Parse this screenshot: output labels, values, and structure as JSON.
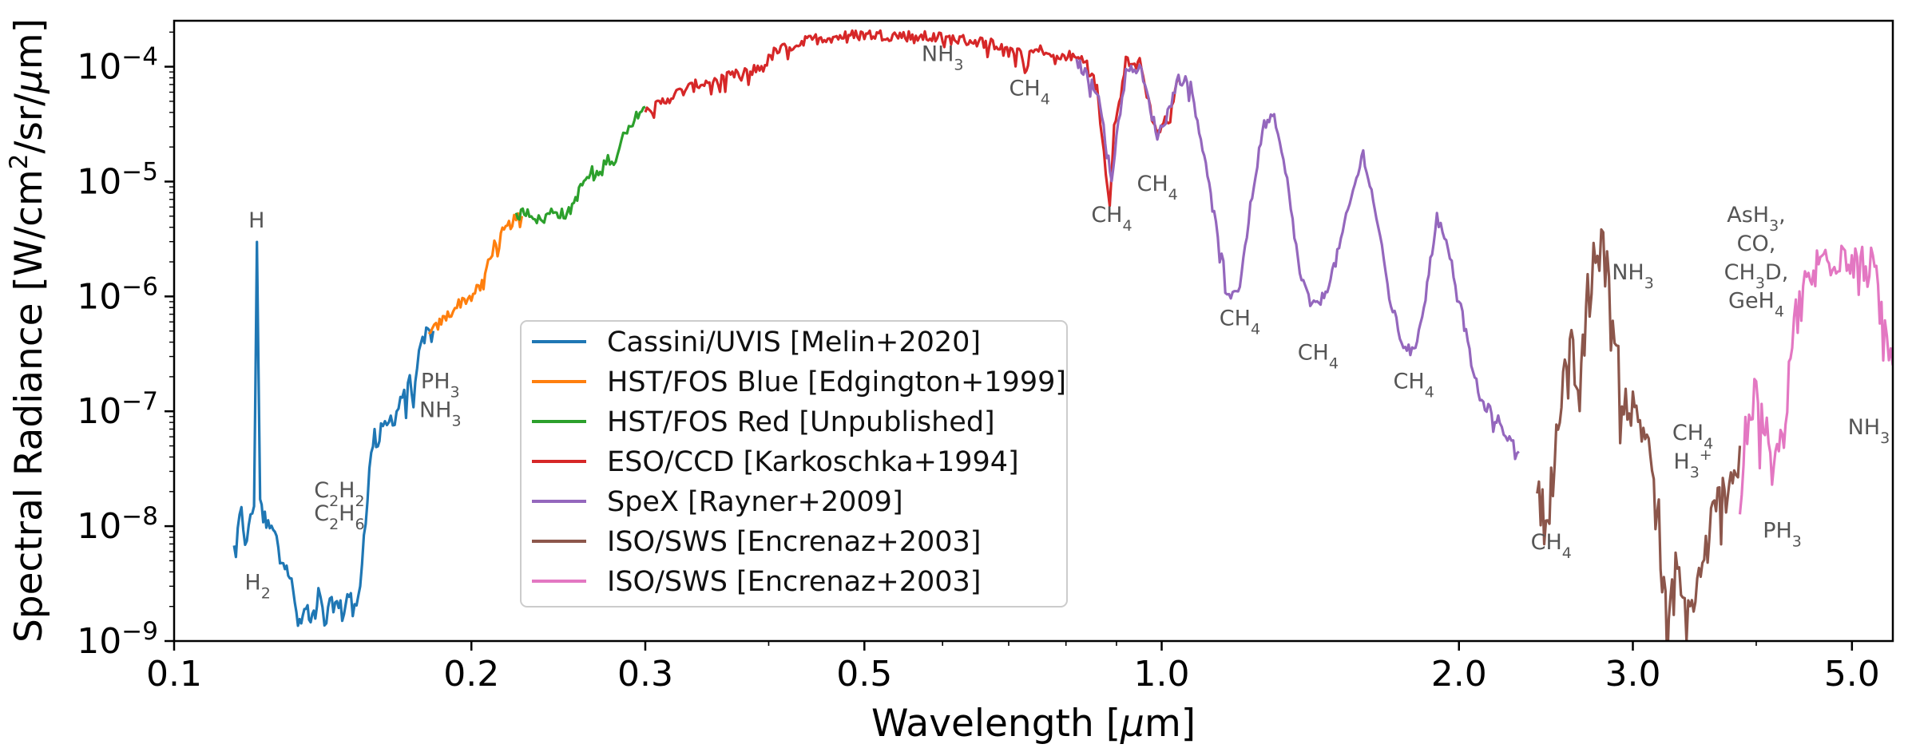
{
  "chart_data": {
    "type": "line",
    "xscale": "log",
    "yscale": "log",
    "xlabel_parts": [
      "Wavelength [",
      "μ",
      "m]"
    ],
    "ylabel_parts": [
      "Spectral Radiance [W/cm",
      "2",
      "/sr/",
      "μ",
      "m]"
    ],
    "xlim": [
      0.1,
      5.5
    ],
    "ylim_exponent": [
      -9,
      -3.6
    ],
    "xticks": [
      {
        "value": 0.1,
        "label": "0.1"
      },
      {
        "value": 0.2,
        "label": "0.2"
      },
      {
        "value": 0.3,
        "label": "0.3"
      },
      {
        "value": 0.5,
        "label": "0.5"
      },
      {
        "value": 1.0,
        "label": "1.0"
      },
      {
        "value": 2.0,
        "label": "2.0"
      },
      {
        "value": 3.0,
        "label": "3.0"
      },
      {
        "value": 5.0,
        "label": "5.0"
      }
    ],
    "yticks": [
      {
        "exponent": -9,
        "base": "10",
        "sup": "−9"
      },
      {
        "exponent": -8,
        "base": "10",
        "sup": "−8"
      },
      {
        "exponent": -7,
        "base": "10",
        "sup": "−7"
      },
      {
        "exponent": -6,
        "base": "10",
        "sup": "−6"
      },
      {
        "exponent": -5,
        "base": "10",
        "sup": "−5"
      },
      {
        "exponent": -4,
        "base": "10",
        "sup": "−4"
      }
    ],
    "series": [
      {
        "name": "Cassini/UVIS [Melin+2020]",
        "color": "#1f77b4",
        "points": [
          [
            0.115,
            -8.2
          ],
          [
            0.117,
            -7.9
          ],
          [
            0.118,
            -8.1
          ],
          [
            0.119,
            -8.05
          ],
          [
            0.1205,
            -7.8
          ],
          [
            0.1213,
            -5.6
          ],
          [
            0.1222,
            -7.7
          ],
          [
            0.124,
            -8.0
          ],
          [
            0.126,
            -8.05
          ],
          [
            0.128,
            -8.2
          ],
          [
            0.13,
            -8.3
          ],
          [
            0.132,
            -8.6
          ],
          [
            0.134,
            -8.9
          ],
          [
            0.136,
            -8.7
          ],
          [
            0.138,
            -8.8
          ],
          [
            0.14,
            -8.6
          ],
          [
            0.142,
            -8.85
          ],
          [
            0.145,
            -8.65
          ],
          [
            0.148,
            -8.75
          ],
          [
            0.151,
            -8.55
          ],
          [
            0.153,
            -8.75
          ],
          [
            0.155,
            -8.3
          ],
          [
            0.157,
            -7.7
          ],
          [
            0.159,
            -7.25
          ],
          [
            0.162,
            -7.2
          ],
          [
            0.165,
            -7.1
          ],
          [
            0.168,
            -7.0
          ],
          [
            0.171,
            -6.8
          ],
          [
            0.174,
            -6.75
          ],
          [
            0.177,
            -6.55
          ],
          [
            0.18,
            -6.35
          ],
          [
            0.183,
            -6.3
          ]
        ]
      },
      {
        "name": "HST/FOS Blue [Edgington+1999]",
        "color": "#ff7f0e",
        "points": [
          [
            0.181,
            -6.35
          ],
          [
            0.185,
            -6.25
          ],
          [
            0.19,
            -6.15
          ],
          [
            0.195,
            -6.05
          ],
          [
            0.2,
            -6.0
          ],
          [
            0.205,
            -5.9
          ],
          [
            0.208,
            -5.7
          ],
          [
            0.211,
            -5.55
          ],
          [
            0.215,
            -5.45
          ],
          [
            0.22,
            -5.35
          ],
          [
            0.225,
            -5.3
          ]
        ]
      },
      {
        "name": "HST/FOS Red [Unpublished]",
        "color": "#2ca02c",
        "points": [
          [
            0.222,
            -5.3
          ],
          [
            0.228,
            -5.25
          ],
          [
            0.235,
            -5.35
          ],
          [
            0.242,
            -5.25
          ],
          [
            0.25,
            -5.3
          ],
          [
            0.255,
            -5.15
          ],
          [
            0.26,
            -5.0
          ],
          [
            0.265,
            -4.9
          ],
          [
            0.27,
            -4.95
          ],
          [
            0.275,
            -4.75
          ],
          [
            0.28,
            -4.85
          ],
          [
            0.285,
            -4.6
          ],
          [
            0.29,
            -4.55
          ],
          [
            0.295,
            -4.4
          ],
          [
            0.3,
            -4.35
          ]
        ]
      },
      {
        "name": "ESO/CCD [Karkoschka+1994]",
        "color": "#d62728",
        "points": [
          [
            0.3,
            -4.4
          ],
          [
            0.32,
            -4.25
          ],
          [
            0.34,
            -4.15
          ],
          [
            0.36,
            -4.1
          ],
          [
            0.38,
            -4.05
          ],
          [
            0.395,
            -4.0
          ],
          [
            0.405,
            -3.88
          ],
          [
            0.42,
            -3.82
          ],
          [
            0.45,
            -3.75
          ],
          [
            0.5,
            -3.72
          ],
          [
            0.55,
            -3.73
          ],
          [
            0.6,
            -3.75
          ],
          [
            0.65,
            -3.78
          ],
          [
            0.7,
            -3.82
          ],
          [
            0.72,
            -3.87
          ],
          [
            0.727,
            -4.05
          ],
          [
            0.735,
            -3.88
          ],
          [
            0.76,
            -3.85
          ],
          [
            0.78,
            -3.95
          ],
          [
            0.8,
            -3.9
          ],
          [
            0.84,
            -3.95
          ],
          [
            0.86,
            -4.2
          ],
          [
            0.87,
            -4.6
          ],
          [
            0.886,
            -5.2
          ],
          [
            0.895,
            -4.5
          ],
          [
            0.92,
            -3.95
          ],
          [
            0.95,
            -3.95
          ],
          [
            0.97,
            -4.3
          ],
          [
            0.985,
            -4.55
          ],
          [
            1.0,
            -4.5
          ],
          [
            1.02,
            -4.45
          ],
          [
            1.04,
            -4.1
          ]
        ]
      },
      {
        "name": "SpeX [Rayner+2009]",
        "color": "#9467bd",
        "points": [
          [
            0.82,
            -3.95
          ],
          [
            0.86,
            -4.2
          ],
          [
            0.88,
            -4.7
          ],
          [
            0.89,
            -5.0
          ],
          [
            0.9,
            -4.6
          ],
          [
            0.92,
            -4.05
          ],
          [
            0.95,
            -4.0
          ],
          [
            0.97,
            -4.3
          ],
          [
            0.99,
            -4.6
          ],
          [
            1.01,
            -4.45
          ],
          [
            1.04,
            -4.1
          ],
          [
            1.07,
            -4.15
          ],
          [
            1.1,
            -4.7
          ],
          [
            1.13,
            -5.3
          ],
          [
            1.17,
            -6.0
          ],
          [
            1.2,
            -5.9
          ],
          [
            1.24,
            -5.0
          ],
          [
            1.27,
            -4.5
          ],
          [
            1.3,
            -4.45
          ],
          [
            1.34,
            -5.0
          ],
          [
            1.38,
            -5.8
          ],
          [
            1.42,
            -6.1
          ],
          [
            1.46,
            -6.0
          ],
          [
            1.5,
            -5.7
          ],
          [
            1.55,
            -5.2
          ],
          [
            1.6,
            -4.75
          ],
          [
            1.65,
            -5.3
          ],
          [
            1.7,
            -6.0
          ],
          [
            1.75,
            -6.4
          ],
          [
            1.8,
            -6.5
          ],
          [
            1.85,
            -6.0
          ],
          [
            1.9,
            -5.3
          ],
          [
            1.95,
            -5.6
          ],
          [
            2.0,
            -6.0
          ],
          [
            2.05,
            -6.5
          ],
          [
            2.1,
            -6.9
          ],
          [
            2.15,
            -7.0
          ],
          [
            2.2,
            -7.1
          ],
          [
            2.25,
            -7.25
          ],
          [
            2.3,
            -7.35
          ]
        ]
      },
      {
        "name": "ISO/SWS [Encrenaz+2003]",
        "color": "#8c564b",
        "points": [
          [
            2.4,
            -7.7
          ],
          [
            2.45,
            -8.0
          ],
          [
            2.5,
            -7.4
          ],
          [
            2.55,
            -6.8
          ],
          [
            2.6,
            -6.5
          ],
          [
            2.65,
            -6.9
          ],
          [
            2.7,
            -6.0
          ],
          [
            2.75,
            -5.55
          ],
          [
            2.8,
            -5.6
          ],
          [
            2.85,
            -6.0
          ],
          [
            2.9,
            -6.6
          ],
          [
            2.95,
            -6.9
          ],
          [
            3.0,
            -7.0
          ],
          [
            3.05,
            -7.1
          ],
          [
            3.1,
            -7.2
          ],
          [
            3.15,
            -7.5
          ],
          [
            3.2,
            -8.0
          ],
          [
            3.25,
            -9.0
          ],
          [
            3.3,
            -8.3
          ],
          [
            3.4,
            -8.8
          ],
          [
            3.5,
            -8.5
          ],
          [
            3.6,
            -8.0
          ],
          [
            3.7,
            -7.7
          ],
          [
            3.8,
            -7.6
          ],
          [
            3.85,
            -7.3
          ]
        ]
      },
      {
        "name": "ISO/SWS [Encrenaz+2003]",
        "color": "#e377c2",
        "points": [
          [
            3.85,
            -8.0
          ],
          [
            3.9,
            -7.2
          ],
          [
            3.95,
            -6.9
          ],
          [
            4.05,
            -7.0
          ],
          [
            4.15,
            -7.5
          ],
          [
            4.25,
            -7.3
          ],
          [
            4.35,
            -6.3
          ],
          [
            4.5,
            -5.9
          ],
          [
            4.7,
            -5.65
          ],
          [
            4.9,
            -5.6
          ],
          [
            5.1,
            -5.65
          ],
          [
            5.25,
            -5.8
          ],
          [
            5.4,
            -6.3
          ],
          [
            5.5,
            -6.6
          ]
        ]
      }
    ],
    "annotations": [
      {
        "x": 0.1212,
        "y": -5.4,
        "parts": [
          "H"
        ]
      },
      {
        "x": 0.1215,
        "y": -8.55,
        "parts": [
          "H",
          "2",
          ""
        ]
      },
      {
        "x": 0.147,
        "y": -7.75,
        "parts": [
          "C",
          "2",
          "H",
          "2",
          ""
        ]
      },
      {
        "x": 0.147,
        "y": -7.95,
        "parts": [
          "C",
          "2",
          "H",
          "6",
          ""
        ]
      },
      {
        "x": 0.186,
        "y": -6.8,
        "parts": [
          "PH",
          "3",
          ""
        ]
      },
      {
        "x": 0.186,
        "y": -7.05,
        "parts": [
          "NH",
          "3",
          ""
        ]
      },
      {
        "x": 0.6,
        "y": -3.95,
        "parts": [
          "NH",
          "3",
          ""
        ]
      },
      {
        "x": 0.735,
        "y": -4.25,
        "parts": [
          "CH",
          "4",
          ""
        ]
      },
      {
        "x": 0.89,
        "y": -5.35,
        "parts": [
          "CH",
          "4",
          ""
        ]
      },
      {
        "x": 0.99,
        "y": -5.08,
        "parts": [
          "CH",
          "4",
          ""
        ]
      },
      {
        "x": 1.2,
        "y": -6.25,
        "parts": [
          "CH",
          "4",
          ""
        ]
      },
      {
        "x": 1.44,
        "y": -6.55,
        "parts": [
          "CH",
          "4",
          ""
        ]
      },
      {
        "x": 1.8,
        "y": -6.8,
        "parts": [
          "CH",
          "4",
          ""
        ]
      },
      {
        "x": 2.48,
        "y": -8.2,
        "parts": [
          "CH",
          "4",
          ""
        ]
      },
      {
        "x": 3.0,
        "y": -5.85,
        "parts": [
          "NH",
          "3",
          ""
        ]
      },
      {
        "x": 3.45,
        "y": -7.25,
        "parts": [
          "CH",
          "4",
          ""
        ]
      },
      {
        "x": 3.45,
        "y": -7.5,
        "parts": [
          "H",
          "3",
          "",
          "+"
        ]
      },
      {
        "x": 4.25,
        "y": -8.1,
        "parts": [
          "PH",
          "3",
          ""
        ]
      },
      {
        "x": 4.0,
        "y": -5.35,
        "parts": [
          "AsH",
          "3",
          ","
        ]
      },
      {
        "x": 4.0,
        "y": -5.6,
        "parts": [
          "CO,"
        ]
      },
      {
        "x": 4.0,
        "y": -5.85,
        "parts": [
          "CH",
          "3",
          "D,"
        ]
      },
      {
        "x": 4.0,
        "y": -6.1,
        "parts": [
          "GeH",
          "4",
          ""
        ]
      },
      {
        "x": 5.2,
        "y": -7.2,
        "parts": [
          "NH",
          "3",
          ""
        ]
      }
    ],
    "legend_position": "lower-center"
  }
}
